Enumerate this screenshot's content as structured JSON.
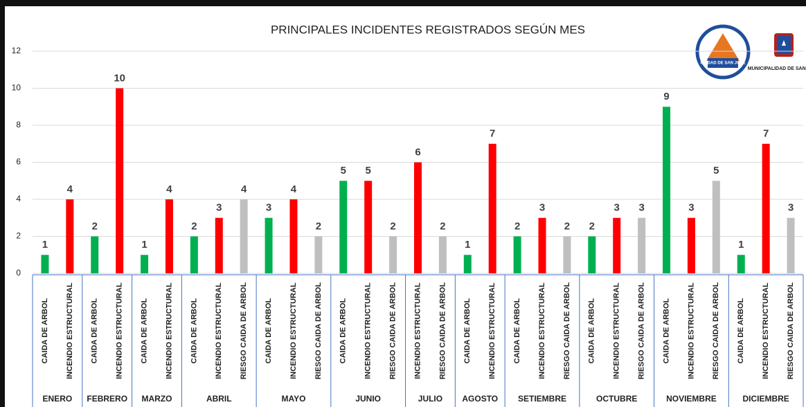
{
  "chart_data": {
    "type": "bar",
    "title": "PRINCIPALES INCIDENTES REGISTRADOS SEGÚN MES",
    "logos": [
      "CIUDAD DE SAN JOSÉ",
      "MUNICIPALIDAD DE SAN JOSÉ"
    ],
    "ylim": [
      0,
      12
    ],
    "yticks": [
      0,
      2,
      4,
      6,
      8,
      10,
      12
    ],
    "grid": true,
    "groups": [
      {
        "label": "ENERO",
        "categories": [
          "CAIDA DE ARBOL",
          "INCENDIO ESTRUCTURAL"
        ],
        "values": [
          1,
          4
        ],
        "colors": [
          "#00b050",
          "#ff0000"
        ]
      },
      {
        "label": "FEBRERO",
        "categories": [
          "CAIDA DE ARBOL",
          "INCENDIO ESTRUCTURAL"
        ],
        "values": [
          2,
          10
        ],
        "colors": [
          "#00b050",
          "#ff0000"
        ]
      },
      {
        "label": "MARZO",
        "categories": [
          "CAIDA DE ARBOL",
          "INCENDIO ESTRUCTURAL"
        ],
        "values": [
          1,
          4
        ],
        "colors": [
          "#00b050",
          "#ff0000"
        ]
      },
      {
        "label": "ABRIL",
        "categories": [
          "CAIDA DE ARBOL",
          "INCENDIO ESTRUCTURAL",
          "RIESGO CAIDA DE ARBOL"
        ],
        "values": [
          2,
          3,
          4
        ],
        "colors": [
          "#00b050",
          "#ff0000",
          "#bfbfbf"
        ]
      },
      {
        "label": "MAYO",
        "categories": [
          "CAIDA DE ARBOL",
          "INCENDIO ESTRUCTURAL",
          "RIESGO CAIDA DE ARBOL"
        ],
        "values": [
          3,
          4,
          2
        ],
        "colors": [
          "#00b050",
          "#ff0000",
          "#bfbfbf"
        ]
      },
      {
        "label": "JUNIO",
        "categories": [
          "CAIDA DE ARBOL",
          "INCENDIO ESTRUCTURAL",
          "RIESGO CAIDA DE ARBOL"
        ],
        "values": [
          5,
          5,
          2
        ],
        "colors": [
          "#00b050",
          "#ff0000",
          "#bfbfbf"
        ]
      },
      {
        "label": "JULIO",
        "categories": [
          "INCENDIO ESTRUCTURAL",
          "RIESGO CAIDA DE ARBOL"
        ],
        "values": [
          6,
          2
        ],
        "colors": [
          "#ff0000",
          "#bfbfbf"
        ]
      },
      {
        "label": "AGOSTO",
        "categories": [
          "CAIDA DE ARBOL",
          "INCENDIO ESTRUCTURAL"
        ],
        "values": [
          1,
          7
        ],
        "colors": [
          "#00b050",
          "#ff0000"
        ]
      },
      {
        "label": "SETIEMBRE",
        "categories": [
          "CAIDA DE ARBOL",
          "INCENDIO ESTRUCTURAL",
          "RIESGO CAIDA DE ARBOL"
        ],
        "values": [
          2,
          3,
          2
        ],
        "colors": [
          "#00b050",
          "#ff0000",
          "#bfbfbf"
        ]
      },
      {
        "label": "OCTUBRE",
        "categories": [
          "CAIDA DE ARBOL",
          "INCENDIO ESTRUCTURAL",
          "RIESGO CAIDA DE ARBOL"
        ],
        "values": [
          2,
          3,
          3
        ],
        "colors": [
          "#00b050",
          "#ff0000",
          "#bfbfbf"
        ]
      },
      {
        "label": "NOVIEMBRE",
        "categories": [
          "CAIDA DE ARBOL",
          "INCENDIO ESTRUCTURAL",
          "RIESGO CAIDA DE ARBOL"
        ],
        "values": [
          9,
          3,
          5
        ],
        "colors": [
          "#00b050",
          "#ff0000",
          "#bfbfbf"
        ]
      },
      {
        "label": "DICIEMBRE",
        "categories": [
          "CAIDA DE ARBOL",
          "INCENDIO ESTRUCTURAL",
          "RIESGO CAIDA DE ARBOL"
        ],
        "values": [
          1,
          7,
          3
        ],
        "colors": [
          "#00b050",
          "#ff0000",
          "#bfbfbf"
        ]
      }
    ]
  }
}
